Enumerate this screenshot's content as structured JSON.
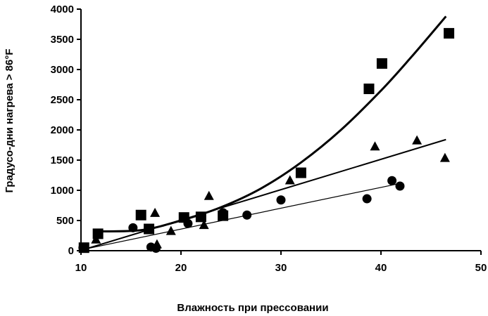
{
  "chart_data": {
    "type": "scatter",
    "xlabel": "Влажность при прессовании",
    "ylabel": "Градусо-дни нагрева > 86°F",
    "xlim": [
      10,
      50
    ],
    "ylim": [
      0,
      4000
    ],
    "xticks": [
      "10",
      "20",
      "30",
      "40",
      "50"
    ],
    "yticks": [
      "0",
      "500",
      "1000",
      "1500",
      "2000",
      "2500",
      "3000",
      "3500",
      "4000"
    ],
    "grid": false,
    "legend": "none",
    "series": [
      {
        "marker": "square",
        "points": [
          [
            10.3,
            50
          ],
          [
            11.7,
            280
          ],
          [
            16.0,
            590
          ],
          [
            16.8,
            360
          ],
          [
            20.3,
            550
          ],
          [
            22.0,
            560
          ],
          [
            24.2,
            580
          ],
          [
            32.0,
            1290
          ],
          [
            38.8,
            2680
          ],
          [
            40.1,
            3100
          ],
          [
            46.8,
            3600
          ]
        ],
        "trend": {
          "kind": "curve",
          "points": [
            [
              11.5,
              320
            ],
            [
              16.0,
              340
            ],
            [
              20.0,
              500
            ],
            [
              24.0,
              720
            ],
            [
              28.0,
              1030
            ],
            [
              32.0,
              1460
            ],
            [
              36.0,
              2000
            ],
            [
              40.0,
              2650
            ],
            [
              43.0,
              3200
            ],
            [
              46.5,
              3880
            ]
          ]
        }
      },
      {
        "marker": "triangle",
        "points": [
          [
            11.5,
            180
          ],
          [
            17.4,
            620
          ],
          [
            17.6,
            100
          ],
          [
            19.0,
            320
          ],
          [
            22.3,
            420
          ],
          [
            22.8,
            900
          ],
          [
            30.9,
            1160
          ],
          [
            39.4,
            1720
          ],
          [
            43.6,
            1820
          ],
          [
            46.4,
            1530
          ]
        ],
        "trend": {
          "kind": "line",
          "points": [
            [
              10.5,
              30
            ],
            [
              46.5,
              1840
            ]
          ]
        }
      },
      {
        "marker": "circle",
        "points": [
          [
            10.2,
            50
          ],
          [
            15.2,
            380
          ],
          [
            17.0,
            60
          ],
          [
            17.5,
            40
          ],
          [
            20.7,
            450
          ],
          [
            24.2,
            630
          ],
          [
            26.6,
            590
          ],
          [
            30.0,
            840
          ],
          [
            38.6,
            860
          ],
          [
            41.1,
            1160
          ],
          [
            41.9,
            1070
          ]
        ],
        "trend": {
          "kind": "line",
          "points": [
            [
              10.5,
              30
            ],
            [
              41.5,
              1100
            ]
          ]
        }
      }
    ]
  }
}
